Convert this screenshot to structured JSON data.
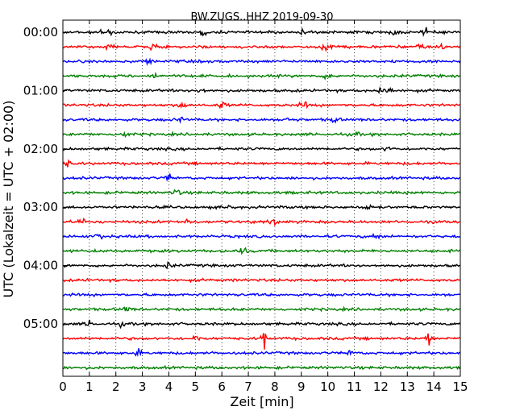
{
  "chart_data": {
    "type": "line",
    "title": "BW.ZUGS..HHZ 2019-09-30",
    "xlabel": "Zeit  [min]",
    "ylabel": "UTC (Lokalzeit = UTC + 02:00)",
    "xlim": [
      0,
      15
    ],
    "x_ticks": [
      "0",
      "1",
      "2",
      "3",
      "4",
      "5",
      "6",
      "7",
      "8",
      "9",
      "10",
      "11",
      "12",
      "13",
      "14",
      "15"
    ],
    "y_ticks": [
      {
        "label": "00:00",
        "trace_index": 0
      },
      {
        "label": "01:00",
        "trace_index": 4
      },
      {
        "label": "02:00",
        "trace_index": 8
      },
      {
        "label": "03:00",
        "trace_index": 12
      },
      {
        "label": "04:00",
        "trace_index": 16
      },
      {
        "label": "05:00",
        "trace_index": 20
      }
    ],
    "grid": {
      "vertical_dotted": true
    },
    "trace_interval_minutes": 15,
    "trace_color_cycle": [
      "#000000",
      "#ff0000",
      "#0000ff",
      "#008000"
    ],
    "traces": [
      {
        "start": "00:00",
        "events": [
          1.6,
          1.8,
          5.3,
          9.0,
          12.5,
          13.7
        ]
      },
      {
        "start": "00:15",
        "events": [
          1.8,
          3.4,
          9.8,
          10.0,
          13.5,
          14.3
        ]
      },
      {
        "start": "00:30",
        "events": [
          3.2
        ]
      },
      {
        "start": "00:45",
        "events": [
          3.4,
          10.0
        ]
      },
      {
        "start": "01:00",
        "events": [
          5.2,
          12.0,
          12.3
        ]
      },
      {
        "start": "01:15",
        "events": [
          4.5,
          6.0,
          9.1
        ]
      },
      {
        "start": "01:30",
        "events": [
          4.4,
          8.5,
          10.3
        ]
      },
      {
        "start": "01:45",
        "events": [
          2.3,
          11.0
        ]
      },
      {
        "start": "02:00",
        "events": [
          12.3
        ]
      },
      {
        "start": "02:15",
        "events": [
          0.2
        ]
      },
      {
        "start": "02:30",
        "events": [
          4.0
        ]
      },
      {
        "start": "02:45",
        "events": [
          4.3
        ]
      },
      {
        "start": "03:00",
        "events": [
          6.2,
          11.5
        ]
      },
      {
        "start": "03:15",
        "events": [
          0.7,
          4.7,
          8.0
        ]
      },
      {
        "start": "03:30",
        "events": [
          1.4,
          11.8
        ]
      },
      {
        "start": "03:45",
        "events": [
          6.8
        ]
      },
      {
        "start": "04:00",
        "events": [
          4.0
        ]
      },
      {
        "start": "04:15",
        "events": []
      },
      {
        "start": "04:30",
        "events": []
      },
      {
        "start": "04:45",
        "events": [
          2.4
        ]
      },
      {
        "start": "05:00",
        "events": [
          1.0,
          2.3
        ]
      },
      {
        "start": "05:15",
        "events": [
          5.0,
          7.6,
          13.8
        ]
      },
      {
        "start": "05:30",
        "events": [
          2.8,
          10.9
        ]
      },
      {
        "start": "05:45",
        "events": []
      }
    ]
  }
}
